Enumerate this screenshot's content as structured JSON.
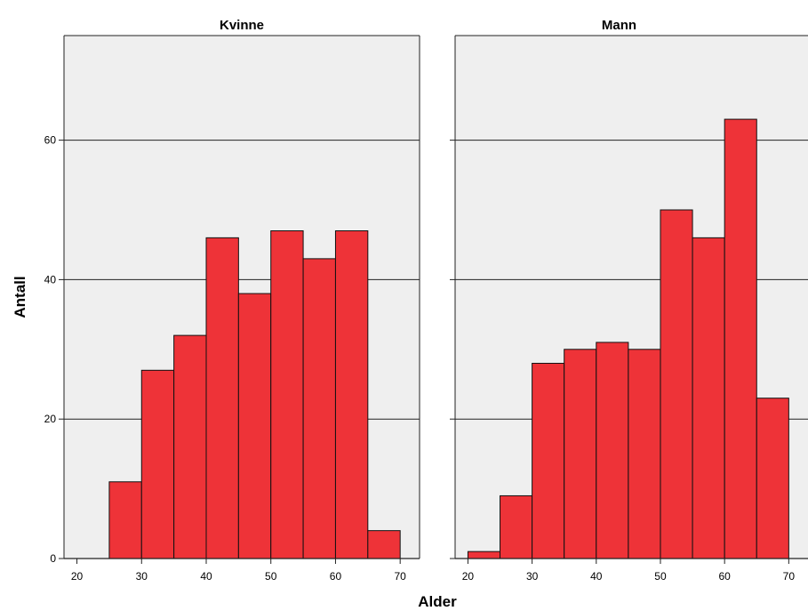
{
  "chart_data": {
    "type": "bar",
    "xlabel": "Alder",
    "ylabel": "Antall",
    "ylim": [
      0,
      75
    ],
    "y_ticks": [
      "0",
      "20",
      "40",
      "60"
    ],
    "x_ticks": [
      "20",
      "30",
      "40",
      "50",
      "60",
      "70"
    ],
    "xlim": [
      18,
      73
    ],
    "grid": true,
    "bar_color": "#ee3338",
    "panel_bg": "#efefef",
    "bin_edges": [
      20,
      25,
      30,
      35,
      40,
      45,
      50,
      55,
      60,
      65,
      70
    ],
    "panels": [
      {
        "title": "Kvinne",
        "values": [
          0,
          11,
          27,
          32,
          46,
          38,
          47,
          43,
          47,
          4
        ]
      },
      {
        "title": "Mann",
        "values": [
          1,
          9,
          28,
          30,
          31,
          30,
          50,
          46,
          63,
          23
        ]
      }
    ]
  }
}
